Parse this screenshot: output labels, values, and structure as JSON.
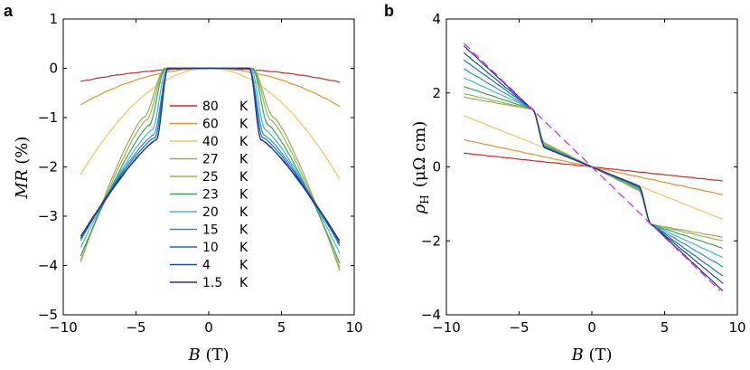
{
  "chart_data": [
    {
      "panel_label": "a",
      "type": "line",
      "xlabel_var": "B",
      "xlabel_unit": "(T)",
      "ylabel_var": "MR",
      "ylabel_unit": "(%)",
      "xlim": [
        -10,
        10
      ],
      "ylim": [
        -5,
        1
      ],
      "xticks": [
        -10,
        -5,
        0,
        5,
        10
      ],
      "xtick_labels": [
        "−10",
        "−5",
        "0",
        "5",
        "10"
      ],
      "yticks": [
        -5,
        -4,
        -3,
        -2,
        -1,
        0,
        1
      ],
      "ytick_labels": [
        "−5",
        "−4",
        "−3",
        "−2",
        "−1",
        "0",
        "1"
      ],
      "grid": false,
      "legend_position": "center",
      "series": [
        {
          "name": "80",
          "unit": "K",
          "color": "#d62728",
          "kind": "parabola",
          "end_value": -0.28
        },
        {
          "name": "60",
          "unit": "K",
          "color": "#e8922c",
          "kind": "parabola",
          "end_value": -0.77
        },
        {
          "name": "40",
          "unit": "K",
          "color": "#f4c55a",
          "kind": "parabola",
          "end_value": -2.25
        },
        {
          "name": "27",
          "unit": "K",
          "color": "#a6a55c",
          "kind": "transition",
          "Bc": 3.0,
          "knee_B": 4.5,
          "knee_value": -1.0,
          "end_value": -4.1
        },
        {
          "name": "25",
          "unit": "K",
          "color": "#8dbb4e",
          "kind": "transition",
          "Bc": 3.0,
          "knee_B": 4.3,
          "knee_value": -1.05,
          "end_value": -4.05
        },
        {
          "name": "23",
          "unit": "K",
          "color": "#3d9e5e",
          "kind": "transition",
          "Bc": 3.0,
          "knee_B": 4.1,
          "knee_value": -1.15,
          "end_value": -3.95
        },
        {
          "name": "20",
          "unit": "K",
          "color": "#45b9c3",
          "kind": "transition",
          "Bc": 2.9,
          "knee_B": 3.9,
          "knee_value": -1.25,
          "end_value": -3.75
        },
        {
          "name": "15",
          "unit": "K",
          "color": "#2f8fd6",
          "kind": "transition",
          "Bc": 2.8,
          "knee_B": 3.8,
          "knee_value": -1.35,
          "end_value": -3.6
        },
        {
          "name": "10",
          "unit": "K",
          "color": "#1d6fb5",
          "kind": "transition",
          "Bc": 2.8,
          "knee_B": 3.7,
          "knee_value": -1.4,
          "end_value": -3.55
        },
        {
          "name": "4",
          "unit": "K",
          "color": "#1b4f96",
          "kind": "transition",
          "Bc": 2.8,
          "knee_B": 3.6,
          "knee_value": -1.45,
          "end_value": -3.55
        },
        {
          "name": "1.5",
          "unit": "K",
          "color": "#2b2f8a",
          "kind": "transition",
          "Bc": 2.8,
          "knee_B": 3.6,
          "knee_value": -1.45,
          "end_value": -3.5
        }
      ]
    },
    {
      "panel_label": "b",
      "type": "line",
      "xlabel_var": "B",
      "xlabel_unit": "(T)",
      "ylabel_var": "ρ",
      "ylabel_sub": "H",
      "ylabel_unit": "(μΩ cm)",
      "xlim": [
        -10,
        10
      ],
      "ylim": [
        -4,
        4
      ],
      "xticks": [
        -10,
        -5,
        0,
        5,
        10
      ],
      "xtick_labels": [
        "−10",
        "−5",
        "0",
        "5",
        "10"
      ],
      "yticks": [
        -4,
        -2,
        0,
        2,
        4
      ],
      "ytick_labels": [
        "−4",
        "−2",
        "0",
        "2",
        "4"
      ],
      "grid": false,
      "series": [
        {
          "name": "80 K",
          "color": "#d62728",
          "kind": "linear",
          "end_value": -0.38
        },
        {
          "name": "60 K",
          "color": "#e8922c",
          "kind": "linear",
          "end_value": -0.75
        },
        {
          "name": "40 K",
          "color": "#f4c55a",
          "kind": "linear",
          "end_value": -1.42
        },
        {
          "name": "27 K",
          "color": "#a6a55c",
          "kind": "step",
          "inner_slope": 0.2,
          "Bc": 3.6,
          "end_value": -1.9
        },
        {
          "name": "25 K",
          "color": "#8dbb4e",
          "kind": "step",
          "inner_slope": 0.19,
          "Bc": 3.6,
          "end_value": -2.0
        },
        {
          "name": "23 K",
          "color": "#3d9e5e",
          "kind": "step",
          "inner_slope": 0.18,
          "Bc": 3.6,
          "end_value": -2.2
        },
        {
          "name": "20 K",
          "color": "#45b9c3",
          "kind": "step",
          "inner_slope": 0.17,
          "Bc": 3.6,
          "end_value": -2.45
        },
        {
          "name": "15 K",
          "color": "#2f8fd6",
          "kind": "step",
          "inner_slope": 0.17,
          "Bc": 3.6,
          "end_value": -2.7
        },
        {
          "name": "10 K",
          "color": "#1d6fb5",
          "kind": "step",
          "inner_slope": 0.16,
          "Bc": 3.6,
          "end_value": -2.95
        },
        {
          "name": "4 K",
          "color": "#1b4f96",
          "kind": "step",
          "inner_slope": 0.16,
          "Bc": 3.6,
          "end_value": -3.15
        },
        {
          "name": "1.5 K",
          "color": "#2b2f8a",
          "kind": "step",
          "inner_slope": 0.16,
          "Bc": 3.6,
          "end_value": -3.35
        },
        {
          "name": "high-field fit",
          "color": "#e020e0",
          "kind": "dashed-linear",
          "slope": -0.38
        }
      ]
    }
  ]
}
